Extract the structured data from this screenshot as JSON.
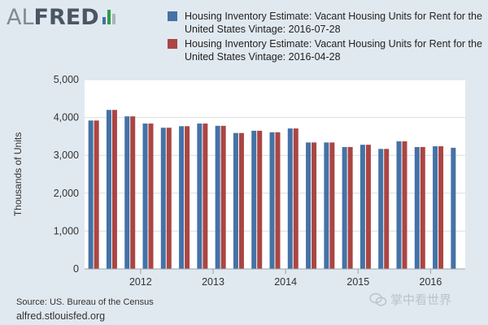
{
  "brand": {
    "al": "AL",
    "fred": "FRED"
  },
  "brand_colors": {
    "bars": [
      "#4572a7",
      "#2e9c4a",
      "#aab4be"
    ]
  },
  "legend": [
    {
      "label": "Housing Inventory Estimate: Vacant Housing Units for Rent for the United States Vintage: 2016-07-28",
      "color": "#4572a7"
    },
    {
      "label": "Housing Inventory Estimate: Vacant Housing Units for Rent for the United States Vintage: 2016-04-28",
      "color": "#aa4643"
    }
  ],
  "source": "Source: US. Bureau of the Census",
  "url": "alfred.stlouisfed.org",
  "watermark": "掌中看世界",
  "chart_data": {
    "type": "bar",
    "ylabel": "Thousands of Units",
    "ylim": [
      0,
      5000
    ],
    "yticks": [
      0,
      1000,
      2000,
      3000,
      4000,
      5000
    ],
    "ytick_labels": [
      "0",
      "1,000",
      "2,000",
      "3,000",
      "4,000",
      "5,000"
    ],
    "x_tick_labels": [
      "2012",
      "2013",
      "2014",
      "2015",
      "2016"
    ],
    "categories": [
      "2011 Q2",
      "2011 Q3",
      "2011 Q4",
      "2012 Q1",
      "2012 Q2",
      "2012 Q3",
      "2012 Q4",
      "2013 Q1",
      "2013 Q2",
      "2013 Q3",
      "2013 Q4",
      "2014 Q1",
      "2014 Q2",
      "2014 Q3",
      "2014 Q4",
      "2015 Q1",
      "2015 Q2",
      "2015 Q3",
      "2015 Q4",
      "2016 Q1",
      "2016 Q2"
    ],
    "series": [
      {
        "name": "Housing Inventory Estimate: Vacant Housing Units for Rent for the United States Vintage: 2016-07-28",
        "color": "#4572a7",
        "values": [
          3920,
          4200,
          4030,
          3840,
          3730,
          3770,
          3840,
          3780,
          3590,
          3650,
          3610,
          3710,
          3340,
          3340,
          3220,
          3280,
          3170,
          3370,
          3220,
          3240,
          3200
        ]
      },
      {
        "name": "Housing Inventory Estimate: Vacant Housing Units for Rent for the United States Vintage: 2016-04-28",
        "color": "#aa4643",
        "values": [
          3920,
          4200,
          4030,
          3840,
          3730,
          3770,
          3840,
          3780,
          3590,
          3650,
          3610,
          3710,
          3340,
          3340,
          3220,
          3280,
          3170,
          3370,
          3220,
          3240,
          null
        ]
      }
    ],
    "grid": true,
    "legend_position": "top"
  }
}
